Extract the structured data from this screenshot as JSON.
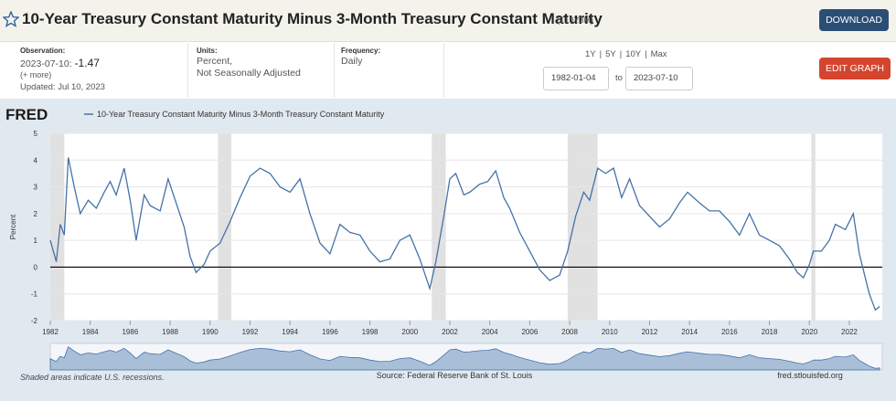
{
  "header": {
    "title": "10-Year Treasury Constant Maturity Minus 3-Month Treasury Constant Maturity",
    "series_id": "(T10Y3M)",
    "download": "DOWNLOAD"
  },
  "info": {
    "observation_label": "Observation:",
    "observation_date": "2023-07-10:",
    "observation_value": "-1.47",
    "more": "(+ more)",
    "updated": "Updated: Jul 10, 2023",
    "units_label": "Units:",
    "units_1": "Percent,",
    "units_2": "Not Seasonally Adjusted",
    "frequency_label": "Frequency:",
    "frequency": "Daily",
    "ranges": [
      "1Y",
      "5Y",
      "10Y",
      "Max"
    ],
    "start_date": "1982-01-04",
    "to": "to",
    "end_date": "2023-07-10",
    "edit_graph": "EDIT GRAPH"
  },
  "footer": {
    "note": "Shaded areas indicate U.S. recessions.",
    "source": "Source: Federal Reserve Bank of St. Louis",
    "site": "fred.stlouisfed.org"
  },
  "logo": "FRED",
  "chart_data": {
    "type": "line",
    "y_label": "Percent",
    "x": [
      1982.0,
      1982.3,
      1982.5,
      1982.7,
      1982.9,
      1983.2,
      1983.5,
      1983.9,
      1984.3,
      1984.7,
      1985.0,
      1985.3,
      1985.7,
      1986.0,
      1986.3,
      1986.7,
      1987.0,
      1987.5,
      1987.9,
      1988.3,
      1988.7,
      1989.0,
      1989.3,
      1989.7,
      1990.0,
      1990.5,
      1991.0,
      1991.5,
      1992.0,
      1992.5,
      1993.0,
      1993.5,
      1994.0,
      1994.5,
      1995.0,
      1995.5,
      1996.0,
      1996.5,
      1997.0,
      1997.5,
      1998.0,
      1998.5,
      1999.0,
      1999.5,
      2000.0,
      2000.5,
      2001.0,
      2001.3,
      2001.7,
      2002.0,
      2002.3,
      2002.7,
      2003.0,
      2003.5,
      2003.9,
      2004.3,
      2004.7,
      2005.0,
      2005.5,
      2006.0,
      2006.5,
      2007.0,
      2007.5,
      2007.9,
      2008.3,
      2008.7,
      2009.0,
      2009.4,
      2009.8,
      2010.2,
      2010.6,
      2011.0,
      2011.5,
      2012.0,
      2012.5,
      2013.0,
      2013.5,
      2013.9,
      2014.5,
      2015.0,
      2015.5,
      2016.0,
      2016.5,
      2017.0,
      2017.5,
      2018.0,
      2018.5,
      2019.0,
      2019.4,
      2019.7,
      2020.0,
      2020.2,
      2020.6,
      2021.0,
      2021.3,
      2021.8,
      2022.2,
      2022.5,
      2022.8,
      2023.0,
      2023.3,
      2023.52
    ],
    "series": [
      {
        "name": "10-Year Treasury Constant Maturity Minus 3-Month Treasury Constant Maturity",
        "color": "#4572a7",
        "values": [
          1.0,
          0.2,
          1.6,
          1.2,
          4.1,
          3.0,
          2.0,
          2.5,
          2.2,
          2.8,
          3.2,
          2.7,
          3.7,
          2.5,
          1.0,
          2.7,
          2.3,
          2.1,
          3.3,
          2.4,
          1.5,
          0.4,
          -0.2,
          0.1,
          0.6,
          0.9,
          1.7,
          2.6,
          3.4,
          3.7,
          3.5,
          3.0,
          2.8,
          3.3,
          2.0,
          0.9,
          0.5,
          1.6,
          1.3,
          1.2,
          0.6,
          0.2,
          0.3,
          1.0,
          1.2,
          0.3,
          -0.8,
          0.2,
          1.9,
          3.3,
          3.5,
          2.7,
          2.8,
          3.1,
          3.2,
          3.6,
          2.6,
          2.2,
          1.3,
          0.6,
          -0.1,
          -0.5,
          -0.3,
          0.6,
          1.9,
          2.8,
          2.5,
          3.7,
          3.5,
          3.7,
          2.6,
          3.3,
          2.3,
          1.9,
          1.5,
          1.8,
          2.4,
          2.8,
          2.4,
          2.1,
          2.1,
          1.7,
          1.2,
          2.0,
          1.2,
          1.0,
          0.8,
          0.3,
          -0.2,
          -0.4,
          0.1,
          0.6,
          0.6,
          1.0,
          1.6,
          1.4,
          2.0,
          0.5,
          -0.4,
          -1.0,
          -1.6,
          -1.47
        ]
      }
    ],
    "recessions": [
      [
        1982.0,
        1982.7
      ],
      [
        1990.4,
        1991.06
      ],
      [
        2001.1,
        2001.8
      ],
      [
        2007.9,
        2009.4
      ],
      [
        2020.1,
        2020.3
      ]
    ],
    "recession_color": "#e1e1e1",
    "xlim": [
      1982,
      2023.65
    ],
    "xticks": [
      1982,
      1984,
      1986,
      1988,
      1990,
      1992,
      1994,
      1996,
      1998,
      2000,
      2002,
      2004,
      2006,
      2008,
      2010,
      2012,
      2014,
      2016,
      2018,
      2020,
      2022
    ],
    "ylim": [
      -2,
      5
    ],
    "yticks": [
      -2,
      -1,
      0,
      1,
      2,
      3,
      4,
      5
    ],
    "zero_line": 0,
    "grid": true
  }
}
